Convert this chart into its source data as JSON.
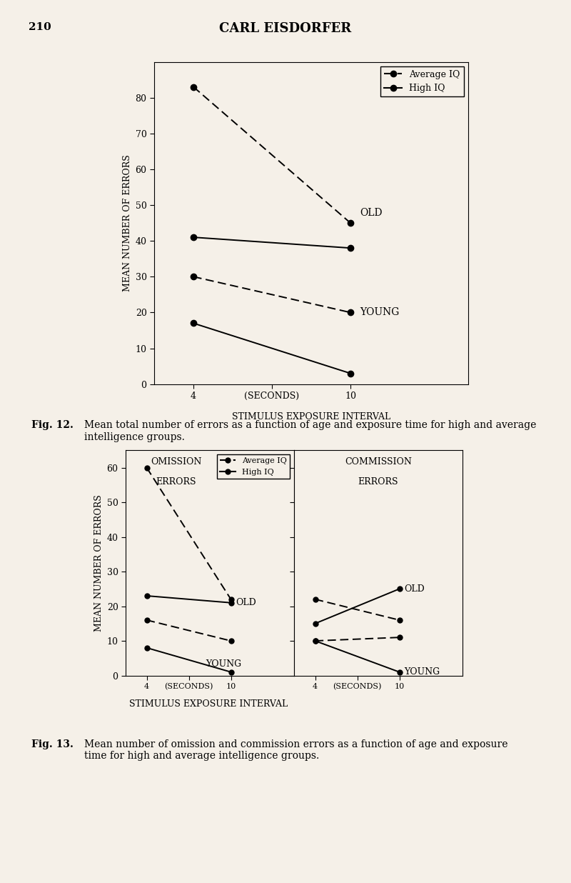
{
  "bg_color": "#f5f0e8",
  "page_title": "CARL EISDORFER",
  "page_num": "210",
  "fig12": {
    "ylabel": "MEAN NUMBER OF ERRORS",
    "xlabel_main": "STIMULUS EXPOSURE INTERVAL",
    "xlabel_mid": "(SECONDS)",
    "ylim": [
      0,
      90
    ],
    "yticks": [
      0,
      10,
      20,
      30,
      40,
      50,
      60,
      70,
      80
    ],
    "old_avg_iq": [
      83,
      45
    ],
    "old_high_iq": [
      41,
      38
    ],
    "young_avg_iq": [
      30,
      20
    ],
    "young_high_iq": [
      17,
      3
    ],
    "legend_avg": "Average IQ",
    "legend_high": "High IQ",
    "label_old": "OLD",
    "label_young": "YOUNG"
  },
  "fig13": {
    "ylabel": "MEAN NUMBER OF ERRORS",
    "xlabel_main": "STIMULUS EXPOSURE INTERVAL",
    "xlabel_mid": "(SECONDS)",
    "ylim": [
      0,
      65
    ],
    "yticks": [
      0,
      10,
      20,
      30,
      40,
      50,
      60
    ],
    "omission_title_line1": "OMISSION",
    "omission_title_line2": "ERRORS",
    "commission_title_line1": "COMMISSION",
    "commission_title_line2": "ERRORS",
    "legend_avg": "Average IQ",
    "legend_high": "High IQ",
    "omission_old_avg": [
      60,
      22
    ],
    "omission_old_high": [
      23,
      21
    ],
    "omission_young_avg": [
      16,
      10
    ],
    "omission_young_high": [
      8,
      1
    ],
    "commission_old_avg": [
      22,
      16
    ],
    "commission_old_high": [
      15,
      25
    ],
    "commission_young_avg": [
      10,
      11
    ],
    "commission_young_high": [
      10,
      1
    ],
    "label_old": "OLD",
    "label_young": "YOUNG"
  }
}
